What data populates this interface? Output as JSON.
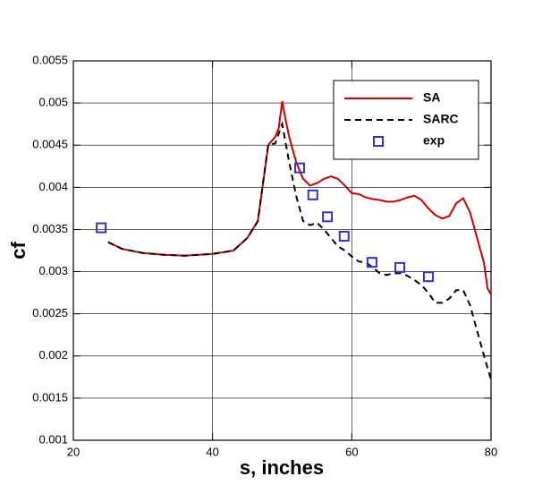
{
  "chart_data": {
    "type": "line",
    "xlabel": "s, inches",
    "ylabel": "cf",
    "xlim": [
      20,
      80
    ],
    "xticks": [
      20,
      40,
      60,
      80
    ],
    "ylim": [
      0.001,
      0.0055
    ],
    "yticks": [
      0.001,
      0.0015,
      0.002,
      0.0025,
      0.003,
      0.0035,
      0.004,
      0.0045,
      0.005,
      0.0055
    ],
    "grid": true,
    "legend": "upper right",
    "series": [
      {
        "name": "SA",
        "color": "#cc0000",
        "style": "solid",
        "x": [
          25,
          27,
          30,
          33,
          36,
          40,
          43,
          45,
          46.5,
          47.5,
          48,
          48.5,
          49,
          49.5,
          50,
          50.5,
          51,
          52,
          53,
          54,
          55,
          56,
          57,
          58,
          59,
          60,
          61,
          62,
          63,
          64,
          65,
          66,
          67,
          68,
          69,
          70,
          71,
          72,
          73,
          74,
          75,
          76,
          77,
          78,
          79,
          79.5,
          80
        ],
        "values": [
          0.00335,
          0.00327,
          0.00322,
          0.0032,
          0.00319,
          0.00321,
          0.00325,
          0.0034,
          0.0036,
          0.0042,
          0.0045,
          0.00455,
          0.0046,
          0.0047,
          0.00502,
          0.0048,
          0.0046,
          0.0043,
          0.0041,
          0.00402,
          0.00405,
          0.0041,
          0.00413,
          0.0041,
          0.00402,
          0.00393,
          0.00392,
          0.00388,
          0.00386,
          0.00385,
          0.00383,
          0.00383,
          0.00385,
          0.00388,
          0.0039,
          0.00385,
          0.00375,
          0.00367,
          0.00363,
          0.00366,
          0.00381,
          0.00387,
          0.0037,
          0.0034,
          0.0031,
          0.0028,
          0.00273
        ]
      },
      {
        "name": "SARC",
        "color": "#000000",
        "style": "dashed",
        "x": [
          25,
          27,
          30,
          33,
          36,
          40,
          43,
          45,
          46.5,
          47.5,
          48,
          49,
          50,
          51,
          52,
          53,
          54,
          55,
          56,
          57,
          58,
          59,
          60,
          61,
          62,
          63,
          64,
          65,
          66,
          67,
          68,
          69,
          70,
          71,
          72,
          73,
          74,
          75,
          76,
          77,
          78,
          79,
          80
        ],
        "values": [
          0.00335,
          0.00327,
          0.00322,
          0.0032,
          0.00319,
          0.00321,
          0.00325,
          0.0034,
          0.0036,
          0.0042,
          0.0045,
          0.00452,
          0.00475,
          0.0043,
          0.0039,
          0.0036,
          0.00355,
          0.00358,
          0.0035,
          0.0034,
          0.0033,
          0.00325,
          0.00318,
          0.00312,
          0.00311,
          0.00305,
          0.00298,
          0.00296,
          0.00298,
          0.00298,
          0.00295,
          0.0029,
          0.00284,
          0.00275,
          0.00263,
          0.00263,
          0.00268,
          0.00278,
          0.00278,
          0.0026,
          0.0023,
          0.002,
          0.00172
        ]
      },
      {
        "name": "exp",
        "color": "#3333cc",
        "style": "square",
        "x": [
          24,
          52.5,
          54.4,
          56.5,
          58.9,
          62.9,
          66.9,
          71
        ],
        "values": [
          0.00352,
          0.00423,
          0.00391,
          0.00365,
          0.00342,
          0.00311,
          0.00305,
          0.00294
        ]
      }
    ]
  }
}
